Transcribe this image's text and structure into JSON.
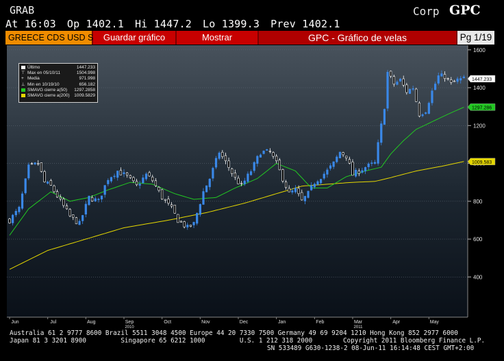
{
  "header": {
    "function": "GRAB",
    "asset_class": "Corp",
    "ticker": "GPC"
  },
  "quote": {
    "at": "At 16:03",
    "open": "Op 1402.1",
    "high": "Hi 1447.2",
    "low": "Lo 1399.3",
    "prev": "Prev 1402.1"
  },
  "toolbar": {
    "security": "GREECE CDS USD S",
    "save_label": "Guardar gráfico",
    "show_label": "Mostrar",
    "title": "GPC - Gráfico de velas",
    "page": "Pg 1/19"
  },
  "legend": {
    "rows": [
      {
        "label": "Último",
        "value": "1447.233",
        "color": "#ffffff",
        "marker": "square"
      },
      {
        "label": "Max en 05/10/11",
        "value": "1504.998",
        "color": "#ffffff",
        "marker": "max"
      },
      {
        "label": "Media",
        "value": "971.998",
        "color": "#ffffff",
        "marker": "mean"
      },
      {
        "label": "Min en 10/19/10",
        "value": "656.182",
        "color": "#ffffff",
        "marker": "min"
      },
      {
        "label": "SMAVG cierre a(50)",
        "value": "1297.2858",
        "color": "#22c822",
        "marker": "square"
      },
      {
        "label": "SMAVG cierre a(200)",
        "value": "1009.5829",
        "color": "#e6d800",
        "marker": "square"
      }
    ]
  },
  "chart_data": {
    "type": "candlestick",
    "y_ticks": [
      1600,
      1400,
      1200,
      1000,
      800,
      600,
      400
    ],
    "ylim": [
      202,
      1610
    ],
    "x_month_labels": [
      "Jun",
      "Jul",
      "Aug",
      "Sep",
      "Oct",
      "Nov",
      "Dec",
      "Jan",
      "Feb",
      "Mar",
      "Apr",
      "May"
    ],
    "x_year_labels": [
      {
        "label": "2010",
        "month": "Sep"
      },
      {
        "label": "2011",
        "month": "Mar"
      }
    ],
    "last_price_label": "1447.233",
    "sma50_label": "1297.286",
    "sma200_label": "1009.583",
    "colors": {
      "bull": "#3a88e8",
      "bear": "#ffffff",
      "sma50": "#22c822",
      "sma200": "#e6d800"
    },
    "close_path": [
      [
        0,
        700
      ],
      [
        3,
        760
      ],
      [
        6,
        980
      ],
      [
        9,
        1000
      ],
      [
        11,
        900
      ],
      [
        13,
        880
      ],
      [
        16,
        800
      ],
      [
        19,
        720
      ],
      [
        22,
        680
      ],
      [
        25,
        820
      ],
      [
        28,
        800
      ],
      [
        31,
        920
      ],
      [
        34,
        960
      ],
      [
        37,
        930
      ],
      [
        40,
        880
      ],
      [
        43,
        940
      ],
      [
        45,
        910
      ],
      [
        48,
        820
      ],
      [
        51,
        760
      ],
      [
        53,
        700
      ],
      [
        56,
        660
      ],
      [
        58,
        680
      ],
      [
        61,
        850
      ],
      [
        63,
        920
      ],
      [
        66,
        1060
      ],
      [
        69,
        980
      ],
      [
        71,
        920
      ],
      [
        73,
        880
      ],
      [
        76,
        960
      ],
      [
        79,
        1060
      ],
      [
        82,
        1060
      ],
      [
        84,
        1000
      ],
      [
        86,
        920
      ],
      [
        88,
        840
      ],
      [
        90,
        860
      ],
      [
        92,
        800
      ],
      [
        94,
        840
      ],
      [
        96,
        900
      ],
      [
        98,
        930
      ],
      [
        100,
        960
      ],
      [
        102,
        1000
      ],
      [
        104,
        1060
      ],
      [
        106,
        1040
      ],
      [
        108,
        940
      ],
      [
        110,
        960
      ],
      [
        112,
        980
      ],
      [
        115,
        1000
      ],
      [
        117,
        1200
      ],
      [
        118,
        1300
      ],
      [
        119,
        1480
      ],
      [
        121,
        1420
      ],
      [
        123,
        1440
      ],
      [
        125,
        1380
      ],
      [
        127,
        1400
      ],
      [
        129,
        1260
      ],
      [
        131,
        1280
      ],
      [
        133,
        1380
      ],
      [
        135,
        1460
      ],
      [
        137,
        1460
      ],
      [
        139,
        1420
      ],
      [
        141,
        1440
      ],
      [
        143,
        1447
      ]
    ],
    "sma50_path": [
      [
        0,
        620
      ],
      [
        6,
        760
      ],
      [
        13,
        850
      ],
      [
        19,
        800
      ],
      [
        25,
        820
      ],
      [
        31,
        860
      ],
      [
        38,
        900
      ],
      [
        45,
        890
      ],
      [
        52,
        840
      ],
      [
        58,
        810
      ],
      [
        65,
        820
      ],
      [
        71,
        870
      ],
      [
        78,
        920
      ],
      [
        84,
        1000
      ],
      [
        90,
        960
      ],
      [
        95,
        870
      ],
      [
        100,
        870
      ],
      [
        106,
        930
      ],
      [
        112,
        960
      ],
      [
        117,
        980
      ],
      [
        120,
        1050
      ],
      [
        124,
        1120
      ],
      [
        128,
        1180
      ],
      [
        133,
        1220
      ],
      [
        138,
        1260
      ],
      [
        143,
        1297
      ]
    ],
    "sma200_path": [
      [
        0,
        440
      ],
      [
        12,
        540
      ],
      [
        24,
        600
      ],
      [
        36,
        660
      ],
      [
        50,
        700
      ],
      [
        62,
        740
      ],
      [
        74,
        790
      ],
      [
        84,
        840
      ],
      [
        92,
        880
      ],
      [
        100,
        890
      ],
      [
        108,
        900
      ],
      [
        115,
        905
      ],
      [
        120,
        925
      ],
      [
        128,
        960
      ],
      [
        136,
        985
      ],
      [
        143,
        1010
      ]
    ]
  },
  "footer": {
    "line1": "Australia 61 2 9777 8600 Brazil 5511 3048 4500 Europe 44 20 7330 7500 Germany 49 69 9204 1210 Hong Kong 852 2977 6000",
    "line2": "Japan 81 3 3201 8900         Singapore 65 6212 1000         U.S. 1 212 318 2000        Copyright 2011 Bloomberg Finance L.P.",
    "line3": "SN 533489 G630-1238-2 08-Jun-11 16:14:48 CEST GMT+2:00"
  }
}
